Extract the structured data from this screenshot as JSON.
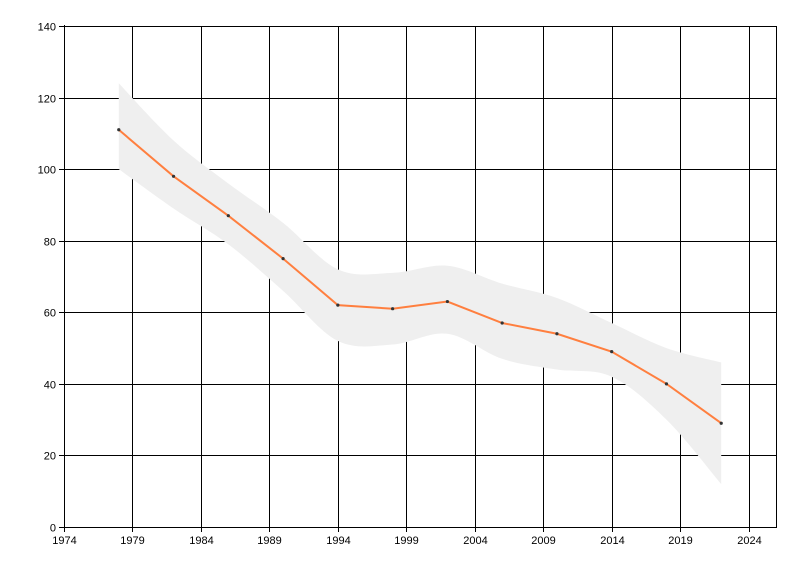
{
  "chart_data": {
    "type": "line",
    "title": "",
    "xlabel": "",
    "ylabel": "",
    "xlim": [
      1974,
      2026
    ],
    "ylim": [
      0,
      140
    ],
    "x_ticks": [
      1974,
      1979,
      1984,
      1989,
      1994,
      1999,
      2004,
      2009,
      2014,
      2019,
      2024
    ],
    "y_ticks": [
      0,
      20,
      40,
      60,
      80,
      100,
      120,
      140
    ],
    "grid": true,
    "legend": "none",
    "series": [
      {
        "x": [
          1978,
          1982,
          1986,
          1990,
          1994,
          1998,
          2002,
          2006,
          2010,
          2014,
          2018,
          2022
        ],
        "values": [
          111,
          98,
          87,
          75,
          62,
          61,
          63,
          57,
          54,
          49,
          40,
          29
        ],
        "band_upper": [
          124,
          108,
          96,
          85,
          72,
          71,
          73,
          68,
          64,
          57,
          50,
          46
        ],
        "band_lower": [
          100,
          89,
          79,
          66,
          52,
          51,
          54,
          47,
          44,
          42,
          30,
          12
        ],
        "color": "#ff7f3f",
        "band_color": "#efefef"
      }
    ]
  }
}
